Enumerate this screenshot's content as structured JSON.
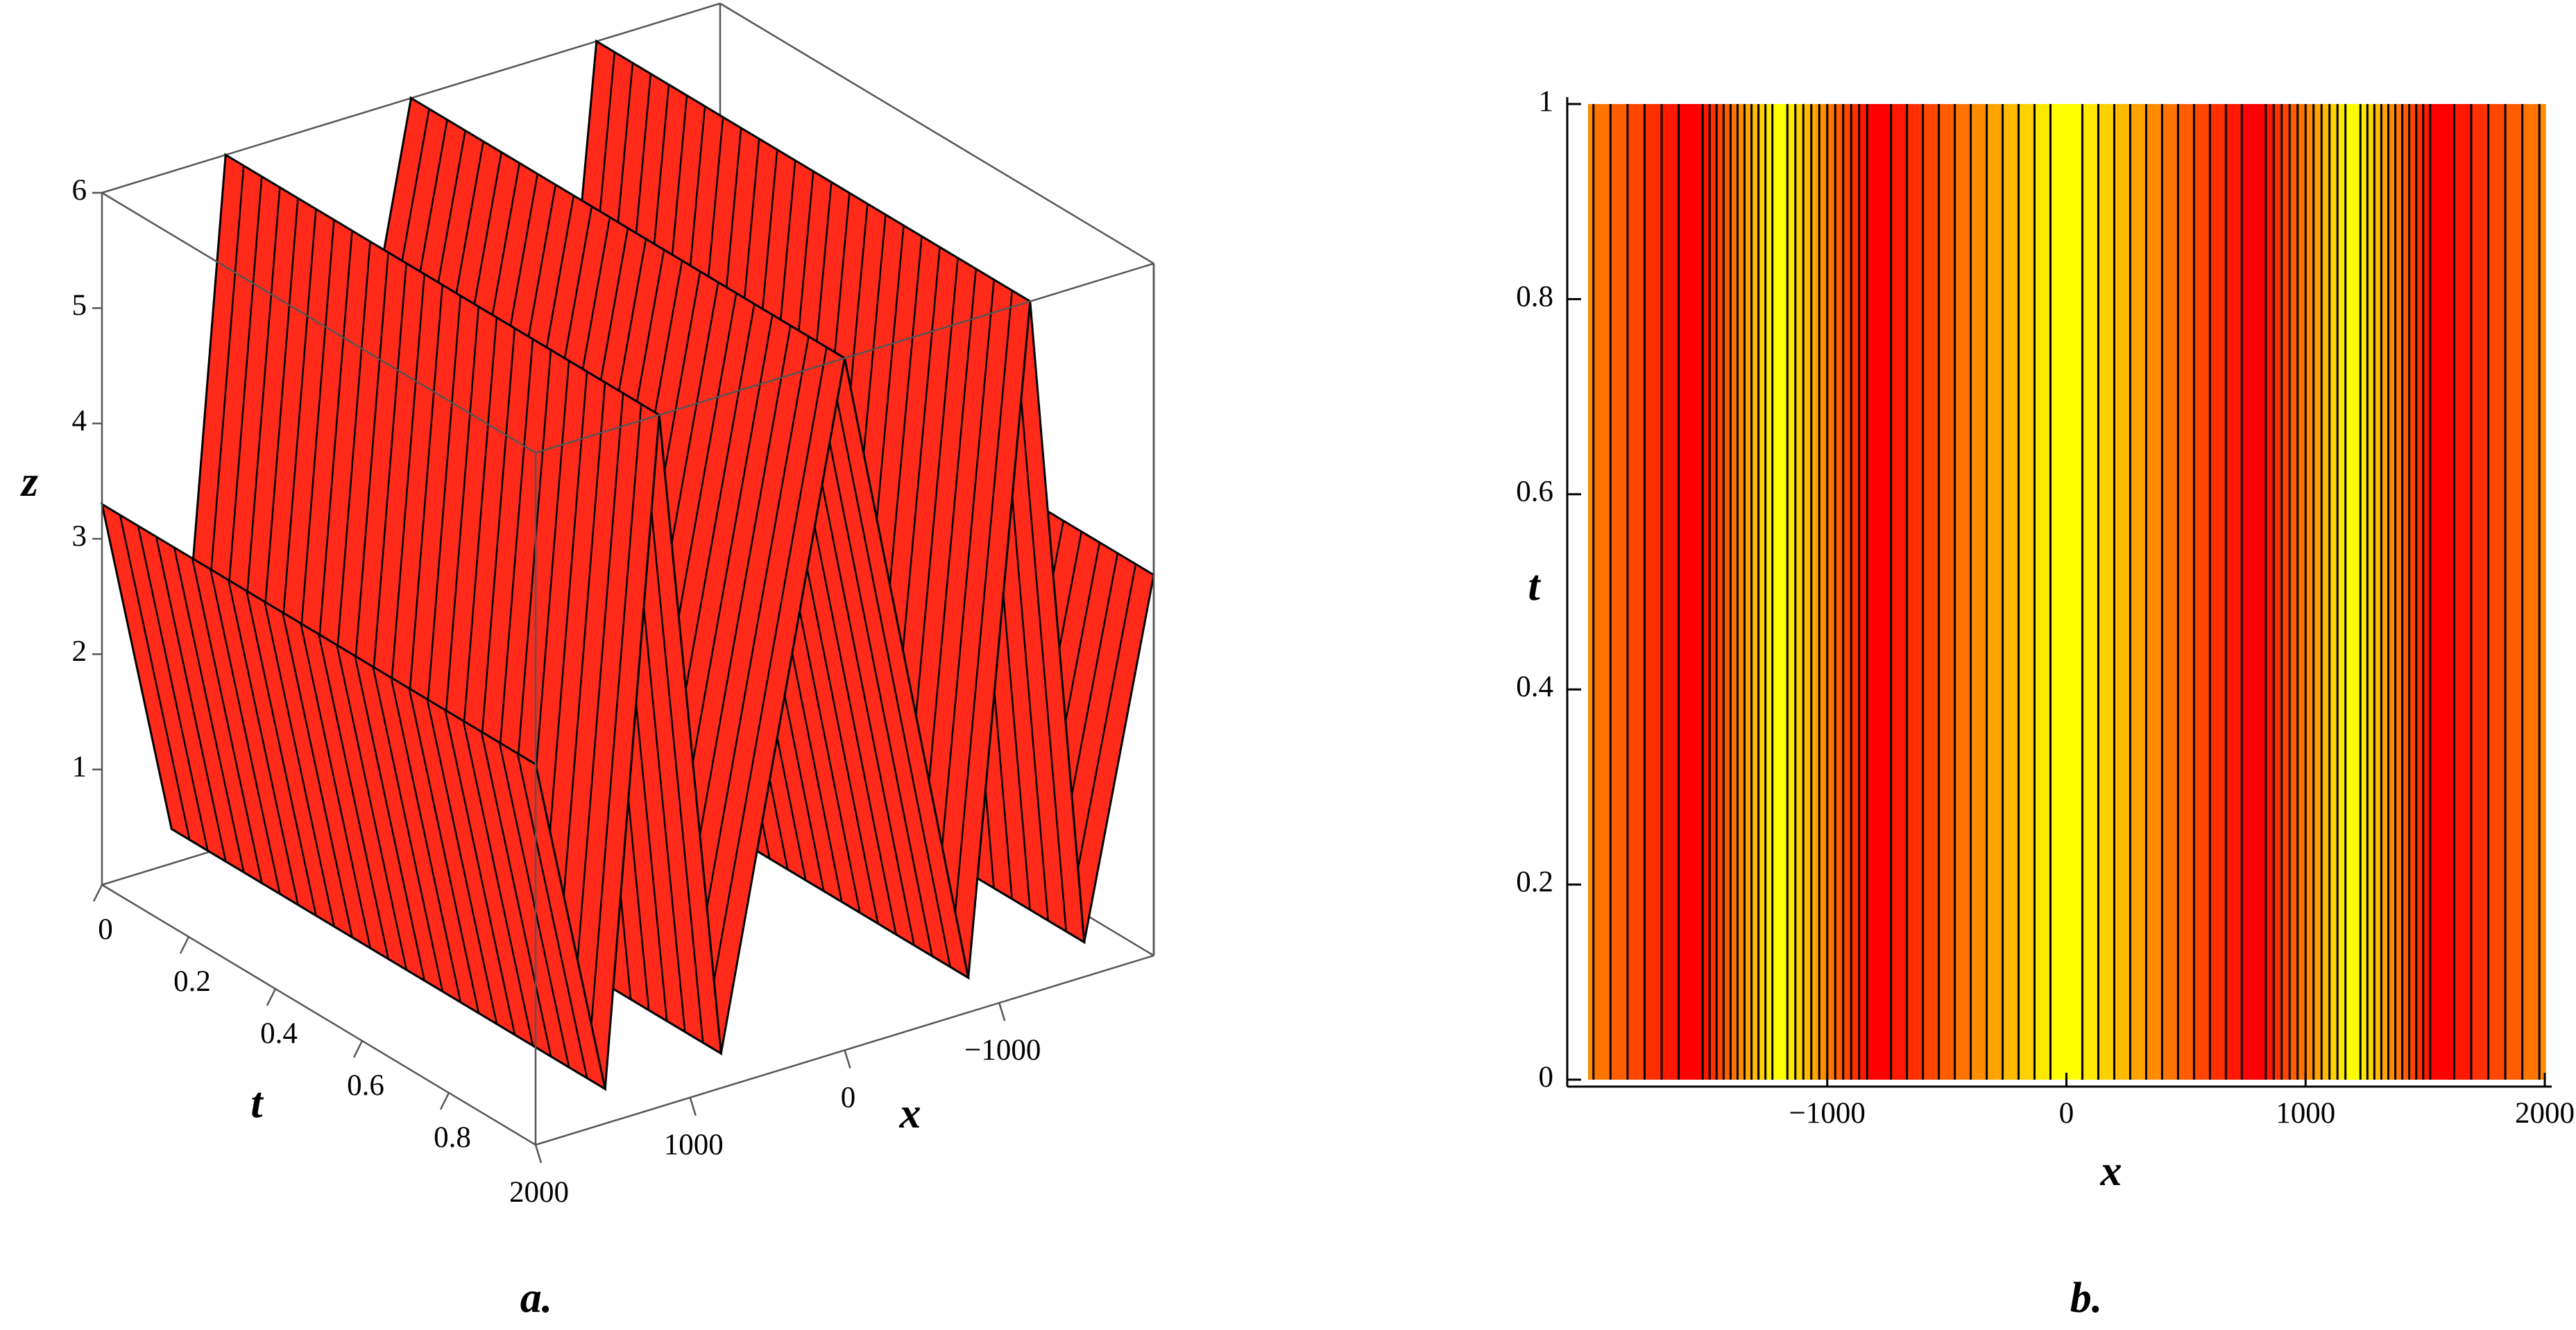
{
  "chart_data": [
    {
      "type": "surface3d",
      "caption": "a.",
      "xlabel": "x",
      "ylabel": "t",
      "zlabel": "z",
      "x": [
        -2000,
        -1550,
        -1200,
        -800,
        0,
        800,
        1200,
        1550,
        2000
      ],
      "z": [
        3.3,
        0.3,
        6,
        0.3,
        6,
        0.3,
        6,
        0.3,
        3.3
      ],
      "color": "#ff2a1a",
      "xlim": [
        -2000,
        2000
      ],
      "ylim": [
        0,
        1
      ],
      "zlim": [
        0,
        6
      ],
      "xticks": [
        {
          "value": -1000,
          "label": "−1000"
        },
        0,
        1000,
        2000
      ],
      "yticks": [
        0,
        0.2,
        0.4,
        0.6,
        0.8
      ],
      "zticks": [
        1,
        2,
        3,
        4,
        5,
        6
      ]
    },
    {
      "type": "contour",
      "caption": "b.",
      "xlabel": "x",
      "ylabel": "t",
      "x": [
        -2000,
        -1550,
        -1200,
        -800,
        0,
        800,
        1200,
        1550,
        2000
      ],
      "z": [
        3.3,
        0.3,
        6,
        0.3,
        6,
        0.3,
        6,
        0.3,
        3.3
      ],
      "colors": [
        "#ff0000",
        "#ff8000",
        "#ffff00"
      ],
      "levels": 12,
      "xlim": [
        -2000,
        2000
      ],
      "ylim": [
        0,
        1
      ],
      "xticks": [
        {
          "value": -1000,
          "label": "−1000"
        },
        0,
        1000,
        2000
      ],
      "yticks": [
        0,
        0.2,
        0.4,
        0.6,
        0.8,
        1
      ]
    }
  ]
}
